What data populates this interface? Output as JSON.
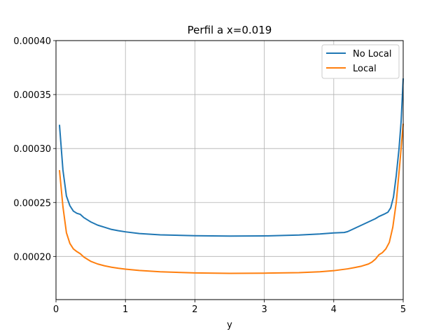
{
  "chart_data": {
    "type": "line",
    "title": "Perfil a x=0.019",
    "xlabel": "y",
    "ylabel": "",
    "xlim": [
      0,
      5
    ],
    "ylim": [
      0.00016,
      0.0004
    ],
    "x_ticks": [
      0,
      1,
      2,
      3,
      4,
      5
    ],
    "x_tick_labels": [
      "0",
      "1",
      "2",
      "3",
      "4",
      "5"
    ],
    "y_ticks": [
      0.0002,
      0.00025,
      0.0003,
      0.00035,
      0.0004
    ],
    "y_tick_labels": [
      "0.00020",
      "0.00025",
      "0.00030",
      "0.00035",
      "0.00040"
    ],
    "grid": true,
    "legend_position": "top-right",
    "series": [
      {
        "name": "No Local",
        "color": "#1f77b4",
        "points": [
          [
            0.05,
            0.000322
          ],
          [
            0.1,
            0.00028
          ],
          [
            0.15,
            0.000256
          ],
          [
            0.2,
            0.000247
          ],
          [
            0.25,
            0.000242
          ],
          [
            0.3,
            0.00024
          ],
          [
            0.35,
            0.000239
          ],
          [
            0.4,
            0.000236
          ],
          [
            0.5,
            0.000232
          ],
          [
            0.6,
            0.000229
          ],
          [
            0.7,
            0.000227
          ],
          [
            0.8,
            0.000225
          ],
          [
            0.9,
            0.0002238
          ],
          [
            1.0,
            0.0002228
          ],
          [
            1.2,
            0.0002212
          ],
          [
            1.5,
            0.00022
          ],
          [
            2.0,
            0.0002192
          ],
          [
            2.5,
            0.0002189
          ],
          [
            3.0,
            0.000219
          ],
          [
            3.5,
            0.0002198
          ],
          [
            3.8,
            0.0002208
          ],
          [
            4.0,
            0.0002218
          ],
          [
            4.15,
            0.0002222
          ],
          [
            4.2,
            0.000223
          ],
          [
            4.3,
            0.000226
          ],
          [
            4.4,
            0.000229
          ],
          [
            4.5,
            0.000232
          ],
          [
            4.6,
            0.000235
          ],
          [
            4.65,
            0.000237
          ],
          [
            4.72,
            0.000239
          ],
          [
            4.78,
            0.000241
          ],
          [
            4.82,
            0.000245
          ],
          [
            4.86,
            0.000255
          ],
          [
            4.9,
            0.000275
          ],
          [
            4.94,
            0.0003
          ],
          [
            4.97,
            0.000325
          ],
          [
            5.0,
            0.000365
          ]
        ]
      },
      {
        "name": "Local",
        "color": "#ff7f0e",
        "points": [
          [
            0.05,
            0.00028
          ],
          [
            0.1,
            0.000246
          ],
          [
            0.15,
            0.000222
          ],
          [
            0.2,
            0.000212
          ],
          [
            0.25,
            0.000207
          ],
          [
            0.3,
            0.0002045
          ],
          [
            0.35,
            0.0002025
          ],
          [
            0.4,
            0.0001995
          ],
          [
            0.5,
            0.0001955
          ],
          [
            0.6,
            0.000193
          ],
          [
            0.7,
            0.0001913
          ],
          [
            0.8,
            0.00019
          ],
          [
            0.9,
            0.000189
          ],
          [
            1.0,
            0.0001882
          ],
          [
            1.2,
            0.000187
          ],
          [
            1.5,
            0.0001858
          ],
          [
            2.0,
            0.0001847
          ],
          [
            2.5,
            0.0001843
          ],
          [
            3.0,
            0.0001845
          ],
          [
            3.5,
            0.000185
          ],
          [
            3.8,
            0.0001858
          ],
          [
            4.0,
            0.0001868
          ],
          [
            4.2,
            0.0001885
          ],
          [
            4.3,
            0.0001897
          ],
          [
            4.4,
            0.000191
          ],
          [
            4.5,
            0.000193
          ],
          [
            4.55,
            0.0001948
          ],
          [
            4.6,
            0.0001975
          ],
          [
            4.65,
            0.0002015
          ],
          [
            4.7,
            0.0002035
          ],
          [
            4.75,
            0.000207
          ],
          [
            4.8,
            0.000213
          ],
          [
            4.85,
            0.000227
          ],
          [
            4.9,
            0.00025
          ],
          [
            4.95,
            0.000285
          ],
          [
            5.0,
            0.000323
          ]
        ]
      }
    ]
  }
}
